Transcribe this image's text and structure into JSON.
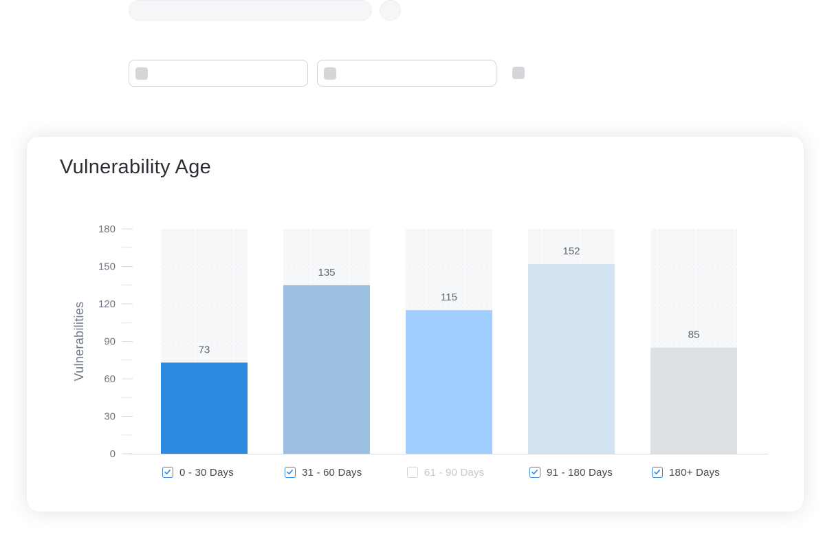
{
  "card": {
    "title": "Vulnerability Age"
  },
  "chart_data": {
    "type": "bar",
    "title": "Vulnerability Age",
    "ylabel": "Vulnerabilities",
    "xlabel": "",
    "ylim": [
      0,
      180
    ],
    "yticks": [
      0,
      30,
      60,
      90,
      120,
      150,
      180
    ],
    "categories": [
      "0 - 30 Days",
      "31 - 60 Days",
      "61 - 90 Days",
      "91 - 180 Days",
      "180+ Days"
    ],
    "values": [
      73,
      135,
      115,
      152,
      85
    ],
    "colors": [
      "#2e8ae0",
      "#9dbfe1",
      "#a1cefe",
      "#d4e3f1",
      "#dee1e4"
    ],
    "legend_checked": [
      true,
      true,
      false,
      true,
      true
    ],
    "legend_placement": "bottom",
    "grid": false
  }
}
